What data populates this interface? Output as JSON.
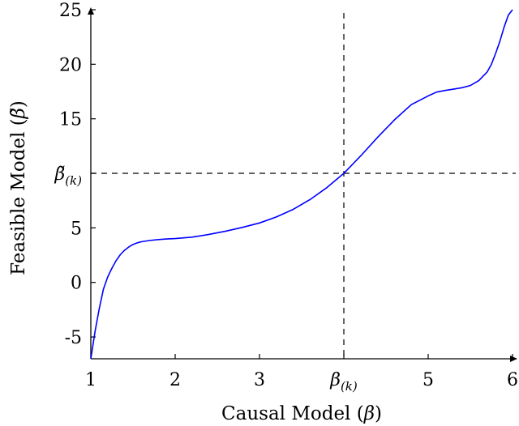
{
  "chart_data": {
    "type": "line",
    "title": "",
    "xlabel_text": "Causal Model (",
    "xlabel_symbol": "β",
    "xlabel_close": ")",
    "ylabel_text": "Feasible Model (",
    "ylabel_symbol": "β̃",
    "ylabel_close": ")",
    "xlim": [
      1,
      6
    ],
    "ylim": [
      -7,
      25
    ],
    "x_ticks": [
      {
        "value": 1,
        "label": "1"
      },
      {
        "value": 2,
        "label": "2"
      },
      {
        "value": 3,
        "label": "3"
      },
      {
        "value": 5,
        "label": "5"
      },
      {
        "value": 6,
        "label": "6"
      }
    ],
    "y_ticks": [
      {
        "value": -5,
        "label": "-5"
      },
      {
        "value": 0,
        "label": "0"
      },
      {
        "value": 5,
        "label": "5"
      },
      {
        "value": 15,
        "label": "15"
      },
      {
        "value": 20,
        "label": "20"
      },
      {
        "value": 25,
        "label": "25"
      }
    ],
    "reference": {
      "x": 4,
      "y": 10,
      "x_label_base": "β",
      "x_label_sub": "(k)",
      "y_label_base": "β̃",
      "y_label_sub": "(k)"
    },
    "series": [
      {
        "color": "#0000ff",
        "x": [
          1.0,
          1.05,
          1.1,
          1.15,
          1.2,
          1.25,
          1.3,
          1.35,
          1.4,
          1.45,
          1.5,
          1.55,
          1.6,
          1.7,
          1.8,
          1.9,
          2.0,
          2.2,
          2.4,
          2.6,
          2.8,
          3.0,
          3.2,
          3.4,
          3.6,
          3.8,
          4.0,
          4.2,
          4.4,
          4.6,
          4.8,
          5.0,
          5.1,
          5.2,
          5.3,
          5.4,
          5.5,
          5.6,
          5.7,
          5.75,
          5.8,
          5.85,
          5.9,
          5.95,
          6.0
        ],
        "y": [
          -7.0,
          -4.5,
          -2.4,
          -0.6,
          0.5,
          1.3,
          2.0,
          2.55,
          2.95,
          3.25,
          3.48,
          3.63,
          3.73,
          3.85,
          3.93,
          3.98,
          4.02,
          4.15,
          4.4,
          4.7,
          5.05,
          5.45,
          6.0,
          6.7,
          7.6,
          8.7,
          10.0,
          11.6,
          13.3,
          14.9,
          16.3,
          17.1,
          17.45,
          17.6,
          17.72,
          17.85,
          18.05,
          18.5,
          19.3,
          20.0,
          21.0,
          22.1,
          23.4,
          24.5,
          25.0
        ]
      }
    ]
  }
}
